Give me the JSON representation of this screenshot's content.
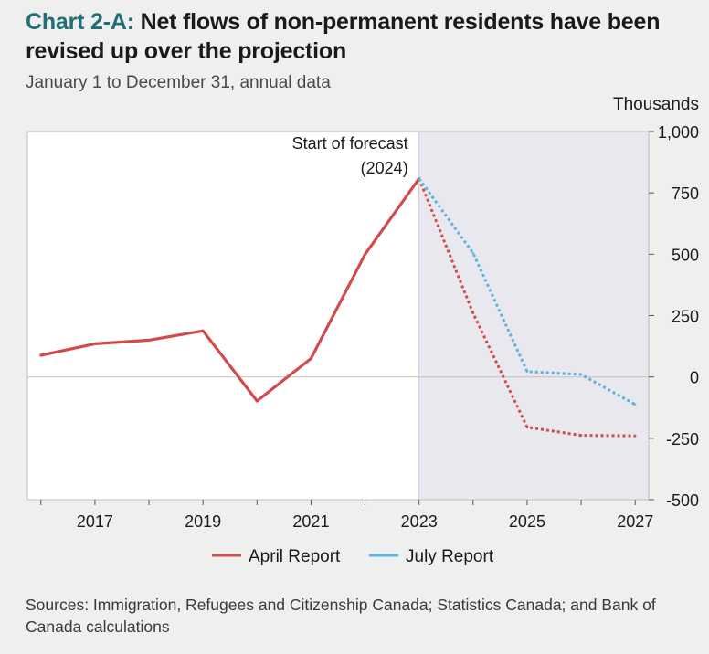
{
  "header": {
    "title_prefix": "Chart 2-A:",
    "title_rest": "Net flows of non-permanent residents have been revised up over the projection",
    "subtitle": "January 1 to December 31, annual data"
  },
  "footer": {
    "sources": "Sources: Immigration, Refugees and Citizenship Canada; Statistics Canada; and Bank of Canada calculations"
  },
  "colors": {
    "april": "#d24b4b",
    "july": "#5ab4df",
    "forecast_shade": "#e8e8ee",
    "title_accent": "#1f6f78"
  },
  "chart_data": {
    "type": "line",
    "title": "Net flows of non-permanent residents have been revised up over the projection",
    "ylabel": "Thousands",
    "ylim": [
      -500,
      1000
    ],
    "yticks": [
      -500,
      -250,
      0,
      250,
      500,
      750,
      1000
    ],
    "ytick_labels": [
      "-500",
      "-250",
      "0",
      "250",
      "500",
      "750",
      "1,000"
    ],
    "xlim": [
      2015.75,
      2027.25
    ],
    "xticks": [
      2017,
      2019,
      2021,
      2023,
      2025,
      2027
    ],
    "xtick_labels": [
      "2017",
      "2019",
      "2021",
      "2023",
      "2025",
      "2027"
    ],
    "forecast_start": 2023,
    "annotation": {
      "line1": "Start of forecast",
      "line2": "(2024)"
    },
    "legend_position": "bottom",
    "series": [
      {
        "name": "April Report",
        "color": "#d24b4b",
        "x": [
          2016,
          2017,
          2018,
          2019,
          2020,
          2021,
          2022,
          2023,
          2024,
          2025,
          2026,
          2027
        ],
        "values": [
          88,
          135,
          150,
          188,
          -98,
          75,
          500,
          808,
          260,
          -205,
          -238,
          -240
        ],
        "forecast_from": 2023
      },
      {
        "name": "July Report",
        "color": "#5ab4df",
        "x": [
          2023,
          2024,
          2025,
          2026,
          2027
        ],
        "values": [
          808,
          505,
          22,
          10,
          -112
        ],
        "forecast_from": 2023
      }
    ]
  }
}
